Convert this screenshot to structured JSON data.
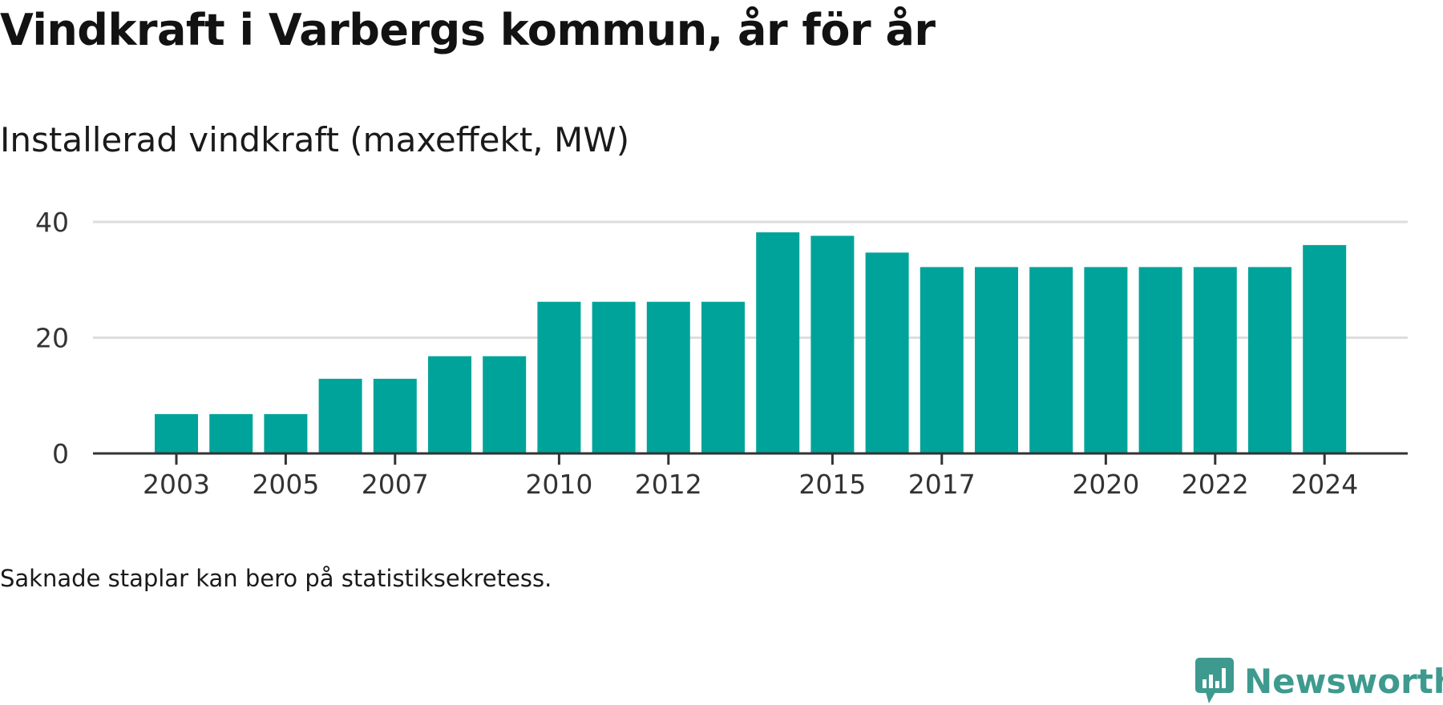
{
  "header": {
    "title": "Vindkraft i Varbergs kommun, år för år",
    "subtitle": "Installerad vindkraft (maxeffekt, MW)"
  },
  "footer": {
    "note": "Saknade staplar kan bero på statistiksekretess.",
    "brand": "Newsworthy"
  },
  "colors": {
    "bar": "#00a39a",
    "grid": "#dddddd",
    "axis": "#333333",
    "brand": "#3e9a8f"
  },
  "chart_data": {
    "type": "bar",
    "title": "Vindkraft i Varbergs kommun, år för år",
    "subtitle": "Installerad vindkraft (maxeffekt, MW)",
    "categories": [
      "2003",
      "2004",
      "2005",
      "2006",
      "2007",
      "2008",
      "2009",
      "2010",
      "2011",
      "2012",
      "2013",
      "2014",
      "2015",
      "2016",
      "2017",
      "2018",
      "2019",
      "2020",
      "2021",
      "2022",
      "2023",
      "2024"
    ],
    "values": [
      6.8,
      6.8,
      6.8,
      12.9,
      12.9,
      16.8,
      16.8,
      26.2,
      26.2,
      26.2,
      26.2,
      38.2,
      37.6,
      34.7,
      32.2,
      32.2,
      32.2,
      32.2,
      32.2,
      32.2,
      32.2,
      36.0
    ],
    "x_tick_labels": [
      "2003",
      "2005",
      "2007",
      "2010",
      "2012",
      "2015",
      "2017",
      "2020",
      "2022",
      "2024"
    ],
    "y_ticks": [
      0,
      20,
      40
    ],
    "ylim": [
      0,
      40
    ],
    "grid": true,
    "legend": "none"
  }
}
